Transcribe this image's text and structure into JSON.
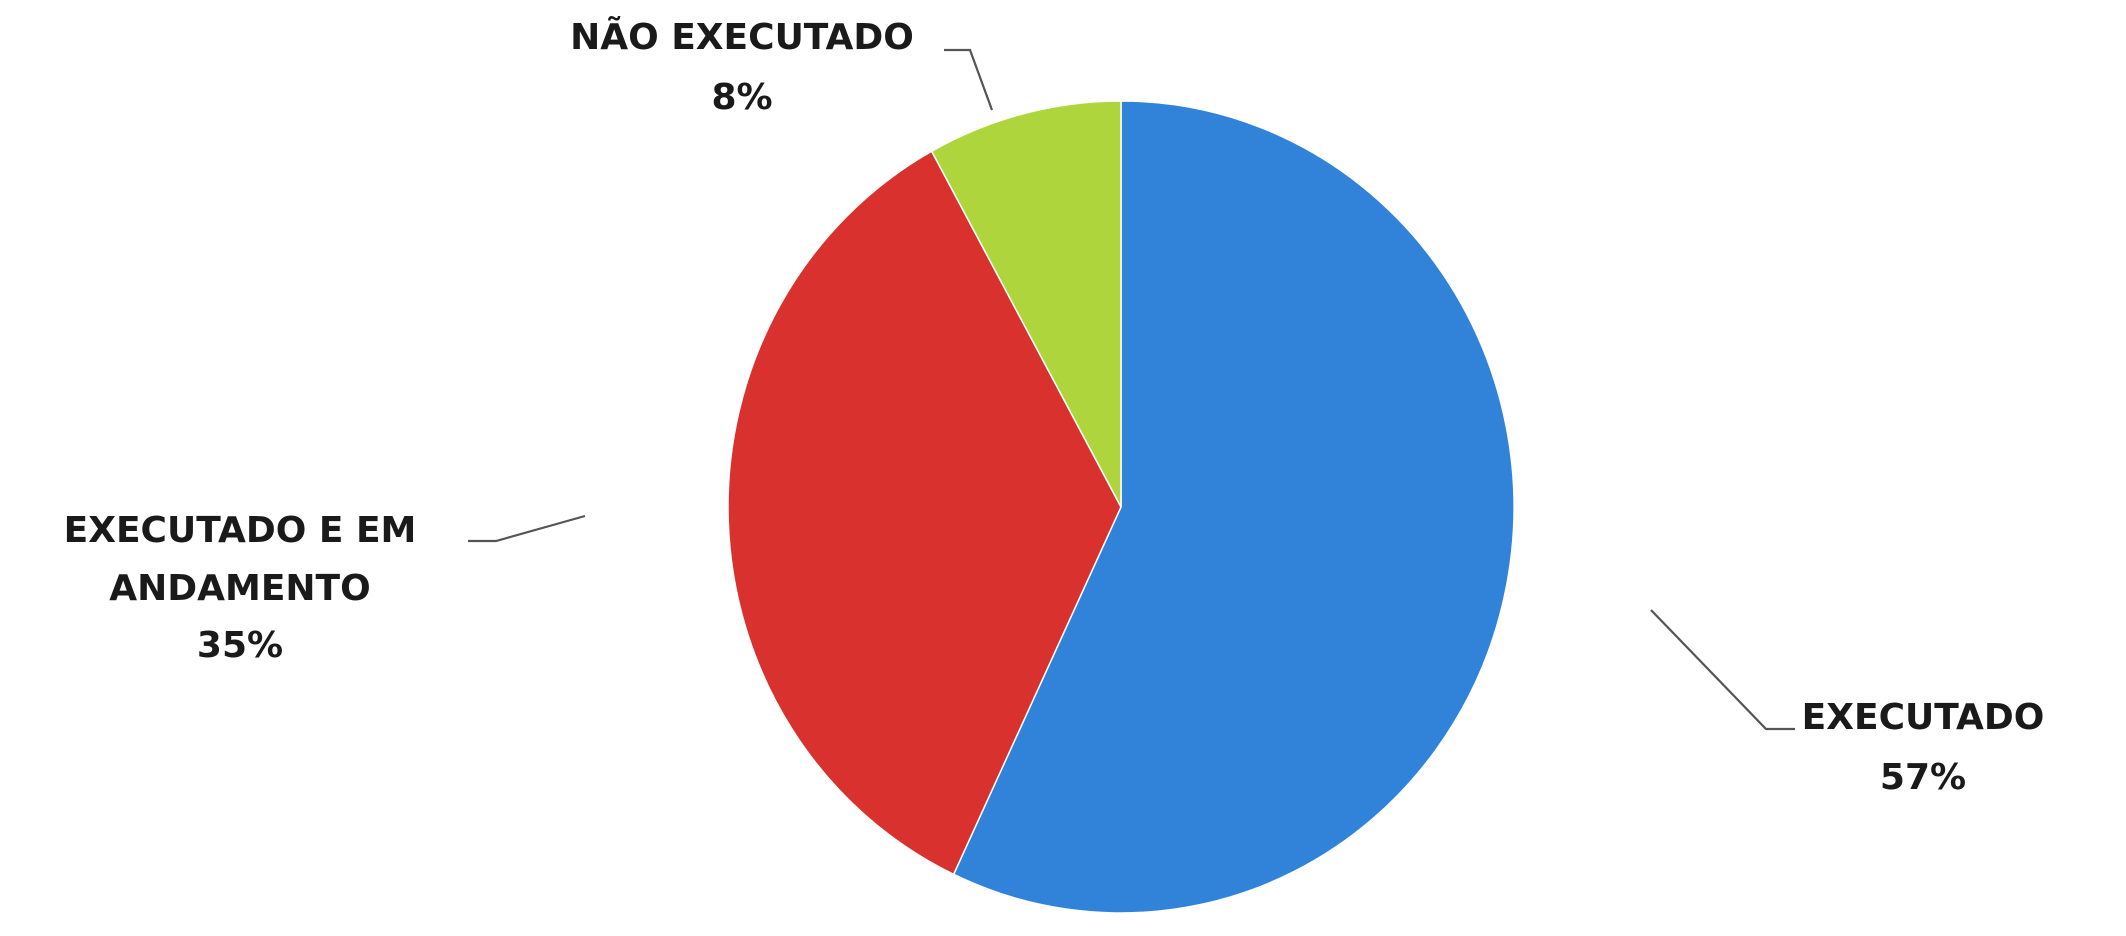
{
  "chart_data": {
    "type": "pie",
    "slices": [
      {
        "label_lines": [
          "EXECUTADO"
        ],
        "value": 57,
        "value_label": "57%",
        "color": "#3182D9"
      },
      {
        "label_lines": [
          "EXECUTADO E EM",
          "ANDAMENTO"
        ],
        "value": 35,
        "value_label": "35%",
        "color": "#D9312E"
      },
      {
        "label_lines": [
          "NÃO EXECUTADO"
        ],
        "value": 8,
        "value_label": "8%",
        "color": "#AED63C"
      }
    ],
    "start": "12 o'clock",
    "direction": "clockwise",
    "legend": "none",
    "data_labels": "outside with leader lines"
  }
}
